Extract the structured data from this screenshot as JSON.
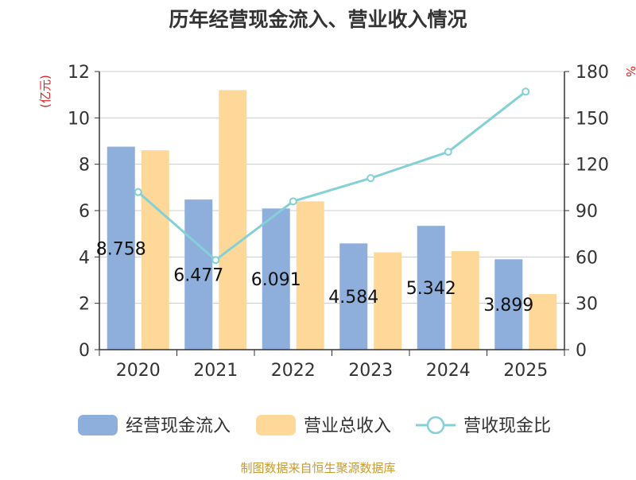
{
  "chart_data": {
    "type": "bar",
    "title": "历年经营现金流入、营业收入情况",
    "categories": [
      "2020",
      "2021",
      "2022",
      "2023",
      "2024",
      "2025"
    ],
    "series": [
      {
        "name": "经营现金流入",
        "kind": "bar",
        "axis": "left",
        "color": "#8eaedb",
        "values": [
          8.758,
          6.477,
          6.091,
          4.584,
          5.342,
          3.899
        ],
        "labels": [
          "8.758",
          "6.477",
          "6.091",
          "4.584",
          "5.342",
          "3.899"
        ]
      },
      {
        "name": "营业总收入",
        "kind": "bar",
        "axis": "left",
        "color": "#fdd899",
        "values": [
          8.6,
          11.2,
          6.4,
          4.2,
          4.25,
          2.4
        ]
      },
      {
        "name": "营收现金比",
        "kind": "line",
        "axis": "right",
        "color": "#83d1d6",
        "values": [
          102,
          58,
          96,
          111,
          128,
          167
        ]
      }
    ],
    "y_left": {
      "label": "(亿元)",
      "min": 0,
      "max": 12,
      "ticks": [
        "0",
        "2",
        "4",
        "6",
        "8",
        "10",
        "12"
      ]
    },
    "y_right": {
      "label": "%",
      "min": 0,
      "max": 180,
      "ticks": [
        "0",
        "30",
        "60",
        "90",
        "120",
        "150",
        "180"
      ]
    },
    "grid": true,
    "legend_position": "bottom"
  },
  "source": "制图数据来自恒生聚源数据库",
  "colors": {
    "unit_label": "#e02020",
    "source": "#c99a2e",
    "axis": "#333333",
    "grid": "#cccccc",
    "text": "#333333"
  }
}
